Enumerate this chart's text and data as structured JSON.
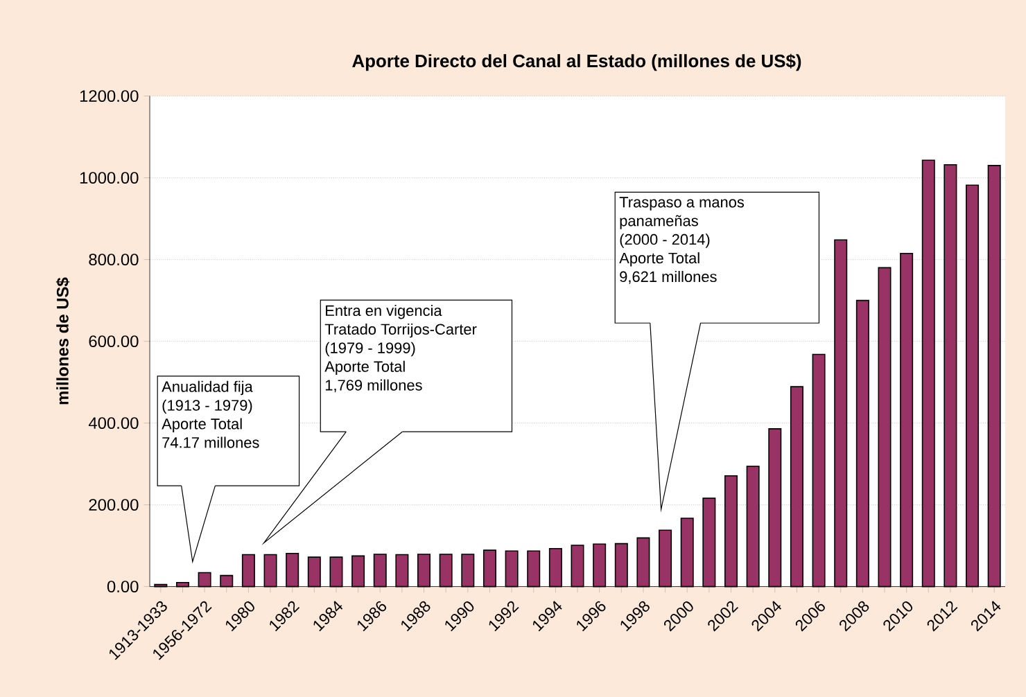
{
  "chart_data": {
    "type": "bar",
    "title": "Aporte Directo del Canal al Estado (millones de US$)",
    "ylabel": "millones de US$",
    "categories": [
      "1913-1933",
      null,
      "1956-1972",
      null,
      "1980",
      null,
      "1982",
      null,
      "1984",
      null,
      "1986",
      null,
      "1988",
      null,
      "1990",
      null,
      "1992",
      null,
      "1994",
      null,
      "1996",
      null,
      "1998",
      null,
      "2000",
      null,
      "2002",
      null,
      "2004",
      null,
      "2006",
      null,
      "2008",
      null,
      "2010",
      null,
      "2012",
      null,
      "2014"
    ],
    "values": [
      5,
      10,
      34,
      27,
      78,
      78,
      81,
      72,
      72,
      75,
      79,
      78,
      79,
      79,
      79,
      89,
      87,
      87,
      93,
      101,
      104,
      105,
      119,
      138,
      167,
      216,
      271,
      294,
      386,
      489,
      568,
      848,
      700,
      780,
      815,
      1043,
      1032,
      982,
      1030
    ],
    "color": "#993366",
    "ylim": [
      0,
      1200
    ],
    "yticks": [
      {
        "value": 0,
        "label": "0.00"
      },
      {
        "value": 200,
        "label": "200.00"
      },
      {
        "value": 400,
        "label": "400.00"
      },
      {
        "value": 600,
        "label": "600.00"
      },
      {
        "value": 800,
        "label": "800.00"
      },
      {
        "value": 1000,
        "label": "1000.00"
      },
      {
        "value": 1200,
        "label": "1200.00"
      }
    ],
    "grid": "y",
    "annotations": [
      "Anualidad fija",
      "(1913 - 1979)",
      "Aporte Total",
      "74.17 millones",
      "Entra en vigencia",
      "Tratado Torrijos-Carter",
      "(1979 - 1999)",
      "Aporte Total",
      "1,769 millones",
      "Traspaso a manos",
      "panameñas",
      "(2000 - 2014)",
      "Aporte Total",
      "9,621 millones"
    ]
  }
}
